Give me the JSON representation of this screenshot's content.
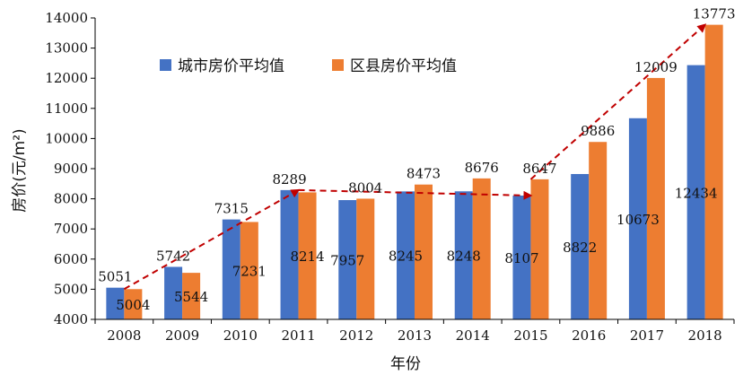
{
  "chart_data": {
    "type": "bar",
    "title": "",
    "xlabel": "年份",
    "ylabel": "房价(元/m²)",
    "categories": [
      "2008",
      "2009",
      "2010",
      "2011",
      "2012",
      "2013",
      "2014",
      "2015",
      "2016",
      "2017",
      "2018"
    ],
    "series": [
      {
        "name": "城市房价平均值",
        "color": "#4472C4",
        "values": [
          5051,
          5742,
          7315,
          8289,
          7957,
          8245,
          8248,
          8107,
          8822,
          10673,
          12434
        ]
      },
      {
        "name": "区县房价平均值",
        "color": "#ED7D31",
        "values": [
          5004,
          5544,
          7231,
          8214,
          8004,
          8473,
          8676,
          8647,
          9886,
          12009,
          13773
        ]
      }
    ],
    "ylim": [
      4000,
      14000
    ],
    "yticks": [
      4000,
      5000,
      6000,
      7000,
      8000,
      9000,
      10000,
      11000,
      12000,
      13000,
      14000
    ],
    "legend_position": "top-left",
    "grid": false,
    "trend_color": "#C00000",
    "trend_arrows": [
      {
        "from": [
          "2008",
          5004
        ],
        "to": [
          "2011",
          8289
        ]
      },
      {
        "from": [
          "2011",
          8289
        ],
        "to": [
          "2015",
          8107
        ]
      },
      {
        "from": [
          "2015",
          8647
        ],
        "to": [
          "2018",
          13773
        ]
      }
    ]
  }
}
